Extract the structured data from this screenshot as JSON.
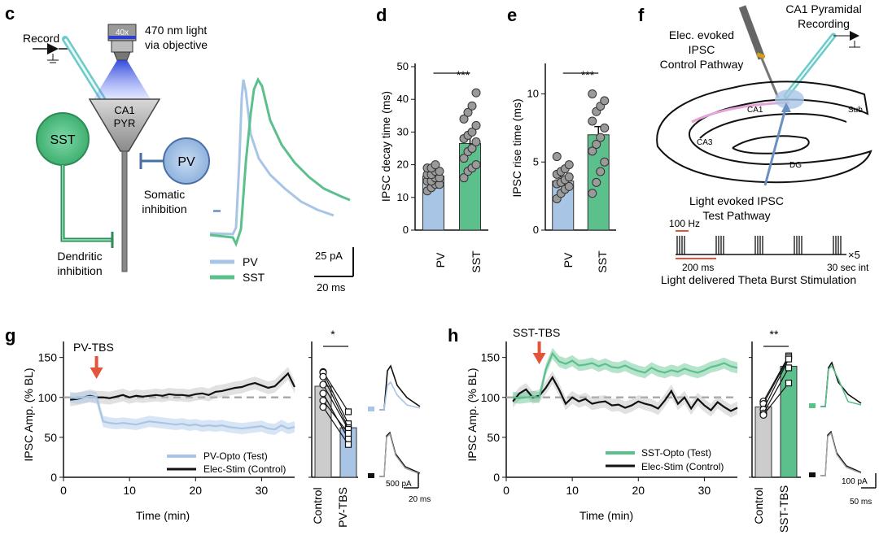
{
  "colors": {
    "pv": "#a9c5e6",
    "pv_dark": "#7fa3cf",
    "sst": "#5cc08d",
    "sst_dark": "#2e8b57",
    "black": "#111111",
    "grey": "#cccccc",
    "arrow": "#e4533c",
    "dash": "#aaaaaa",
    "dot": "#9a9a9a"
  },
  "panels": {
    "c": "c",
    "d": "d",
    "e": "e",
    "f": "f",
    "g": "g",
    "h": "h"
  },
  "panel_c": {
    "record_label": "Record",
    "light_label_1": "470 nm light",
    "light_label_2": "via objective",
    "objective_label": "40x",
    "cell_label_1": "CA1",
    "cell_label_2": "PYR",
    "sst_label": "SST",
    "pv_label": "PV",
    "somatic_1": "Somatic",
    "somatic_2": "inhibition",
    "dendritic_1": "Dendritic",
    "dendritic_2": "inhibition",
    "legend_pv": "PV",
    "legend_sst": "SST",
    "scale_y": "25 pA",
    "scale_x": "20 ms"
  },
  "panel_f": {
    "elec_1": "Elec. evoked",
    "elec_2": "IPSC",
    "elec_3": "Control Pathway",
    "rec_1": "CA1 Pyramidal",
    "rec_2": "Recording",
    "ca1": "CA1",
    "ca3": "CA3",
    "sub": "Sub",
    "dg": "DG",
    "light_1": "Light evoked IPSC",
    "light_2": "Test Pathway",
    "hz": "100 Hz",
    "x5": "×5",
    "ms200": "200 ms",
    "int": "30 sec int",
    "theta": "Light delivered Theta Burst Stimulation"
  },
  "chart_data": [
    {
      "id": "d",
      "type": "bar",
      "title": "",
      "ylabel": "IPSC decay time (ms)",
      "categories": [
        "PV",
        "SST"
      ],
      "values": [
        16.5,
        26.5
      ],
      "errors": [
        1.0,
        2.5
      ],
      "ylim": [
        0,
        50
      ],
      "yticks": [
        0,
        10,
        20,
        30,
        40,
        50
      ],
      "significance": "***",
      "points": [
        [
          12,
          13,
          14,
          14,
          15,
          15,
          16,
          16,
          17,
          17,
          18,
          18,
          19,
          19,
          20
        ],
        [
          16,
          18,
          19,
          20,
          22,
          24,
          25,
          27,
          28,
          29,
          30,
          32,
          34,
          36,
          38,
          42
        ]
      ]
    },
    {
      "id": "e",
      "type": "bar",
      "title": "",
      "ylabel": "IPSC rise time (ms)",
      "categories": [
        "PV",
        "SST"
      ],
      "values": [
        3.6,
        7.0
      ],
      "errors": [
        0.3,
        0.6
      ],
      "ylim": [
        0,
        12
      ],
      "yticks": [
        0,
        5,
        10
      ],
      "significance": "***",
      "points": [
        [
          2.3,
          2.7,
          3.0,
          3.2,
          3.4,
          3.5,
          3.7,
          3.9,
          4.1,
          4.3,
          4.5,
          4.8,
          5.4
        ],
        [
          2.7,
          3.5,
          4.3,
          5.0,
          5.8,
          6.3,
          6.8,
          7.5,
          8.0,
          8.7,
          9.1,
          9.5,
          10.0
        ]
      ]
    },
    {
      "id": "g",
      "type": "line",
      "title": "",
      "xlabel": "Time (min)",
      "ylabel": "IPSC Amp. (% BL)",
      "xlim": [
        0,
        35
      ],
      "ylim": [
        0,
        170
      ],
      "xticks": [
        0,
        10,
        20,
        30
      ],
      "yticks": [
        0,
        50,
        100,
        150
      ],
      "annotation": "PV-TBS",
      "annotation_x": 5,
      "series": [
        {
          "name": "PV-Opto (Test)",
          "x": [
            1,
            2,
            3,
            4,
            5,
            6,
            7,
            8,
            9,
            10,
            11,
            12,
            13,
            14,
            15,
            16,
            17,
            18,
            19,
            20,
            21,
            22,
            23,
            24,
            25,
            26,
            27,
            28,
            29,
            30,
            31,
            32,
            33,
            34,
            35
          ],
          "values": [
            100,
            99,
            100,
            101,
            100,
            70,
            68,
            67,
            68,
            67,
            66,
            68,
            70,
            69,
            68,
            67,
            66,
            67,
            65,
            66,
            64,
            65,
            64,
            65,
            63,
            62,
            61,
            62,
            63,
            64,
            61,
            60,
            65,
            61,
            63
          ]
        },
        {
          "name": "Elec-Stim (Control)",
          "x": [
            1,
            2,
            3,
            4,
            5,
            6,
            7,
            8,
            9,
            10,
            11,
            12,
            13,
            14,
            15,
            16,
            17,
            18,
            19,
            20,
            21,
            22,
            23,
            24,
            25,
            26,
            27,
            28,
            29,
            30,
            31,
            32,
            33,
            34,
            35
          ],
          "values": [
            97,
            98,
            100,
            102,
            100,
            100,
            99,
            101,
            103,
            100,
            102,
            101,
            102,
            103,
            102,
            104,
            103,
            103,
            102,
            104,
            105,
            103,
            107,
            108,
            110,
            112,
            113,
            116,
            118,
            115,
            112,
            114,
            122,
            130,
            113
          ]
        }
      ],
      "bar_categories": [
        "Control",
        "PV-TBS"
      ],
      "bar_values": [
        114,
        62
      ],
      "bar_significance": "*",
      "paired": [
        [
          132,
          82
        ],
        [
          131,
          67
        ],
        [
          126,
          62
        ],
        [
          116,
          60
        ],
        [
          105,
          48
        ],
        [
          96,
          55
        ],
        [
          88,
          41
        ]
      ],
      "trace_scale_y": "500 pA",
      "trace_scale_x": "20 ms"
    },
    {
      "id": "h",
      "type": "line",
      "title": "",
      "xlabel": "Time (min)",
      "ylabel": "IPSC Amp. (% BL)",
      "xlim": [
        0,
        35
      ],
      "ylim": [
        0,
        170
      ],
      "xticks": [
        0,
        10,
        20,
        30
      ],
      "yticks": [
        0,
        50,
        100,
        150
      ],
      "annotation": "SST-TBS",
      "annotation_x": 5,
      "series": [
        {
          "name": "SST-Opto (Test)",
          "x": [
            1,
            2,
            3,
            4,
            5,
            6,
            7,
            8,
            9,
            10,
            11,
            12,
            13,
            14,
            15,
            16,
            17,
            18,
            19,
            20,
            21,
            22,
            23,
            24,
            25,
            26,
            27,
            28,
            29,
            30,
            31,
            32,
            33,
            34,
            35
          ],
          "values": [
            100,
            99,
            100,
            101,
            100,
            135,
            155,
            145,
            142,
            146,
            140,
            141,
            143,
            139,
            142,
            138,
            137,
            140,
            136,
            133,
            131,
            137,
            133,
            131,
            134,
            132,
            136,
            133,
            131,
            134,
            138,
            140,
            143,
            139,
            137
          ]
        },
        {
          "name": "Elec-Stim (Control)",
          "x": [
            1,
            2,
            3,
            4,
            5,
            6,
            7,
            8,
            9,
            10,
            11,
            12,
            13,
            14,
            15,
            16,
            17,
            18,
            19,
            20,
            21,
            22,
            23,
            24,
            25,
            26,
            27,
            28,
            29,
            30,
            31,
            32,
            33,
            34,
            35
          ],
          "values": [
            95,
            105,
            110,
            100,
            102,
            112,
            125,
            110,
            92,
            100,
            95,
            98,
            92,
            94,
            95,
            90,
            91,
            87,
            90,
            95,
            92,
            90,
            86,
            96,
            108,
            92,
            100,
            86,
            98,
            90,
            84,
            94,
            88,
            83,
            87
          ]
        }
      ],
      "bar_categories": [
        "Control",
        "SST-TBS"
      ],
      "bar_values": [
        88,
        139
      ],
      "bar_significance": "**",
      "paired": [
        [
          95,
          152
        ],
        [
          92,
          150
        ],
        [
          85,
          148
        ],
        [
          80,
          137
        ],
        [
          78,
          118
        ]
      ],
      "trace_scale_y": "100 pA",
      "trace_scale_x": "50 ms"
    }
  ]
}
